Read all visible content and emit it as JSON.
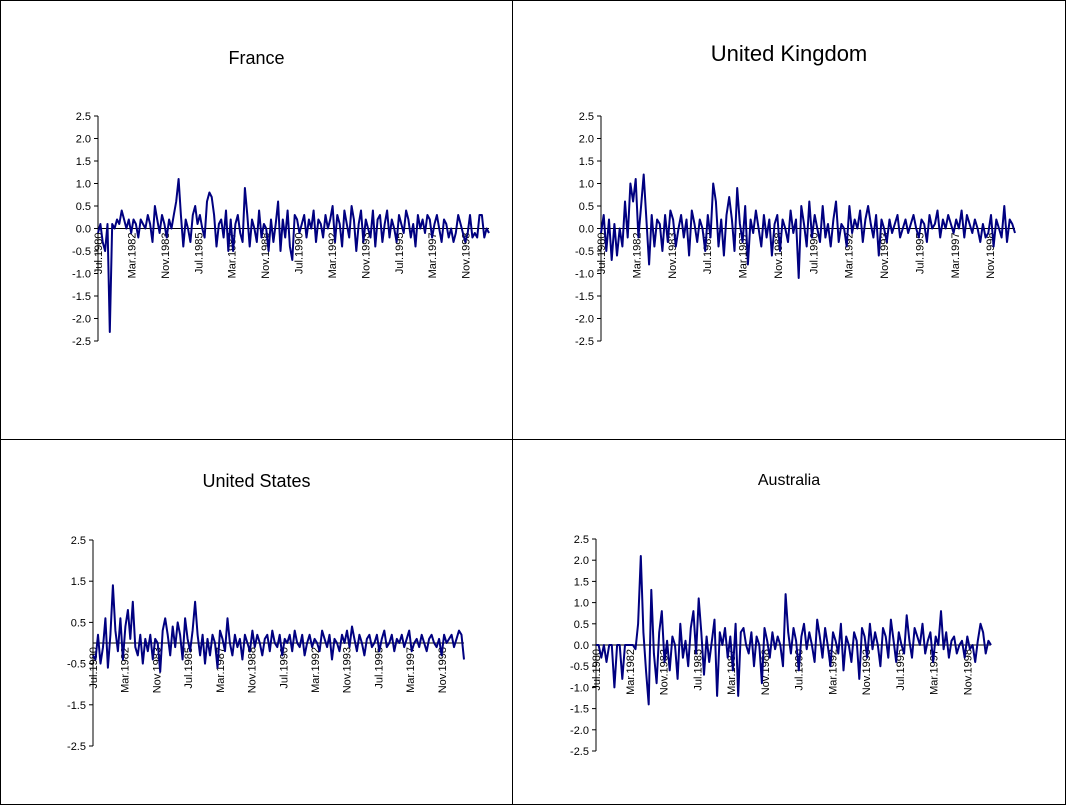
{
  "chart_data": [
    {
      "type": "line",
      "title": "France",
      "xlabel": "",
      "ylabel": "",
      "ylim": [
        -2.5,
        2.5
      ],
      "y_ticks": [
        "2.5",
        "2.0",
        "1.5",
        "1.0",
        "0.5",
        "0.0",
        "-0.5",
        "-1.0",
        "-1.5",
        "-2.0",
        "-2.5"
      ],
      "x_tick_labels": [
        "Jul.1980",
        "Mar.1982",
        "Nov.1983",
        "Jul.1985",
        "Mar.1987",
        "Nov.1988",
        "Jul.1990",
        "Mar.1992",
        "Nov.1993",
        "Jul.1995",
        "Mar.1997",
        "Nov.1998"
      ],
      "series": [
        {
          "color": "#000080",
          "values": [
            -0.1,
            0.1,
            -0.3,
            -0.5,
            0.1,
            -2.3,
            0.1,
            0.0,
            0.2,
            0.1,
            0.4,
            0.2,
            0.0,
            0.2,
            -0.1,
            0.2,
            0.1,
            -0.2,
            0.2,
            0.1,
            0.0,
            0.3,
            0.1,
            -0.3,
            0.5,
            0.2,
            -0.1,
            0.3,
            0.1,
            -0.2,
            0.2,
            0.0,
            0.3,
            0.6,
            1.1,
            0.3,
            -0.4,
            0.2,
            0.0,
            -0.3,
            0.3,
            0.5,
            0.1,
            0.3,
            0.0,
            -0.2,
            0.6,
            0.8,
            0.7,
            0.3,
            -0.4,
            0.1,
            0.2,
            -0.2,
            0.4,
            -0.5,
            0.2,
            -0.5,
            0.1,
            0.3,
            -0.1,
            -0.3,
            0.9,
            0.3,
            -0.4,
            0.2,
            0.0,
            -0.3,
            0.4,
            -0.2,
            0.1,
            0.0,
            -0.5,
            0.2,
            -0.3,
            0.1,
            0.6,
            -0.5,
            0.2,
            -0.2,
            0.4,
            -0.4,
            -0.7,
            0.3,
            0.2,
            -0.1,
            0.1,
            0.3,
            -0.2,
            0.2,
            0.0,
            0.4,
            -0.3,
            0.2,
            0.1,
            -0.2,
            0.3,
            0.0,
            0.2,
            0.5,
            -0.3,
            0.3,
            0.1,
            -0.4,
            0.4,
            0.1,
            -0.2,
            0.5,
            0.2,
            -0.5,
            0.1,
            0.4,
            -0.3,
            0.2,
            0.0,
            -0.2,
            0.4,
            -0.4,
            0.2,
            0.3,
            -0.3,
            0.1,
            0.4,
            -0.2,
            0.2,
            0.0,
            -0.3,
            0.3,
            0.1,
            -0.1,
            0.4,
            0.2,
            -0.2,
            0.1,
            -0.4,
            0.3,
            0.0,
            0.2,
            -0.1,
            0.3,
            0.2,
            -0.2,
            0.1,
            0.3,
            0.0,
            -0.3,
            0.2,
            0.1,
            -0.2,
            0.0,
            -0.3,
            -0.1,
            0.3,
            0.1,
            -0.1,
            -0.3,
            -0.1,
            0.3,
            -0.2,
            -0.1,
            -0.2,
            0.3,
            0.3,
            -0.2,
            0.0,
            -0.1
          ]
        }
      ]
    },
    {
      "type": "line",
      "title": "United Kingdom",
      "xlabel": "",
      "ylabel": "",
      "ylim": [
        -2.5,
        2.5
      ],
      "y_ticks": [
        "2.5",
        "2.0",
        "1.5",
        "1.0",
        "0.5",
        "0.0",
        "-0.5",
        "-1.0",
        "-1.5",
        "-2.0",
        "-2.5"
      ],
      "x_tick_labels": [
        "Jul.1980",
        "Mar.1982",
        "Nov.1983",
        "Jul.1985",
        "Mar.1987",
        "Nov.1988",
        "Jul.1990",
        "Mar.1992",
        "Nov.1993",
        "Jul.1995",
        "Mar.1997",
        "Nov.1998"
      ],
      "series": [
        {
          "color": "#000080",
          "values": [
            -0.1,
            0.3,
            -0.5,
            0.2,
            -0.7,
            0.1,
            -0.6,
            0.0,
            -0.4,
            0.6,
            -0.2,
            1.0,
            0.6,
            1.1,
            -0.2,
            0.5,
            1.2,
            0.2,
            -0.8,
            0.3,
            -0.4,
            0.2,
            0.1,
            -0.5,
            0.3,
            -0.3,
            0.4,
            0.2,
            -0.4,
            0.0,
            0.3,
            -0.2,
            0.2,
            -0.6,
            0.4,
            0.1,
            -0.3,
            0.2,
            0.0,
            -0.5,
            0.3,
            -0.2,
            1.0,
            0.6,
            -0.4,
            0.2,
            -0.6,
            0.3,
            0.7,
            0.2,
            -0.5,
            0.9,
            0.1,
            -0.3,
            0.5,
            -0.8,
            0.2,
            -0.1,
            0.4,
            0.0,
            -0.4,
            0.3,
            -0.2,
            0.2,
            -0.6,
            0.1,
            0.3,
            -0.5,
            0.2,
            0.0,
            -0.3,
            0.4,
            -0.1,
            0.2,
            -1.1,
            0.5,
            0.1,
            -0.4,
            0.6,
            -0.2,
            0.3,
            0.0,
            -0.3,
            0.5,
            -0.2,
            0.1,
            -0.4,
            0.2,
            0.6,
            -0.3,
            0.1,
            0.0,
            -0.4,
            0.5,
            -0.1,
            0.2,
            0.0,
            0.4,
            -0.3,
            0.2,
            0.5,
            0.1,
            -0.2,
            0.3,
            -0.6,
            0.2,
            0.0,
            -0.3,
            0.2,
            -0.1,
            0.1,
            0.3,
            -0.2,
            0.0,
            0.2,
            -0.1,
            0.1,
            0.3,
            0.0,
            -0.2,
            0.2,
            0.1,
            -0.3,
            0.3,
            0.0,
            0.1,
            0.4,
            -0.2,
            0.2,
            0.0,
            0.3,
            0.1,
            -0.1,
            0.2,
            0.0,
            0.4,
            -0.2,
            0.3,
            0.1,
            -0.1,
            0.2,
            0.0,
            -0.3,
            0.1,
            -0.2,
            -0.1,
            0.3,
            -0.4,
            0.2,
            0.0,
            -0.2,
            0.5,
            -0.3,
            0.2,
            0.1,
            -0.1
          ]
        }
      ]
    },
    {
      "type": "line",
      "title": "United States",
      "xlabel": "",
      "ylabel": "",
      "ylim": [
        -2.5,
        2.5
      ],
      "y_ticks": [
        "2.5",
        "1.5",
        "0.5",
        "-0.5",
        "-1.5",
        "-2.5"
      ],
      "x_tick_labels": [
        "Jul.1980",
        "Mar.1982",
        "Nov.1983",
        "Jul.1985",
        "Mar.1987",
        "Nov.1988",
        "Jul.1990",
        "Mar.1992",
        "Nov.1993",
        "Jul.1995",
        "Mar.1997",
        "Nov.1998"
      ],
      "series": [
        {
          "color": "#000080",
          "values": [
            -0.3,
            -0.4,
            0.2,
            -0.5,
            -0.1,
            0.6,
            -0.6,
            0.2,
            1.4,
            0.3,
            -0.2,
            0.6,
            -0.4,
            0.4,
            0.8,
            0.1,
            1.0,
            -0.1,
            -0.3,
            0.2,
            -0.5,
            0.1,
            -0.2,
            0.2,
            -0.4,
            0.1,
            0.0,
            -0.7,
            0.3,
            0.6,
            0.2,
            -0.3,
            0.4,
            -0.1,
            0.5,
            0.2,
            -0.4,
            0.6,
            0.1,
            -0.2,
            0.3,
            1.0,
            0.2,
            -0.3,
            0.2,
            -0.5,
            0.1,
            -0.3,
            0.2,
            0.0,
            -0.6,
            0.3,
            0.1,
            -0.2,
            0.6,
            0.0,
            -0.3,
            0.2,
            -0.1,
            0.1,
            -0.4,
            0.2,
            0.0,
            -0.2,
            0.3,
            -0.1,
            0.2,
            0.0,
            -0.3,
            0.1,
            0.2,
            -0.2,
            0.3,
            0.0,
            -0.1,
            0.2,
            -0.3,
            0.1,
            0.0,
            0.2,
            -0.2,
            0.3,
            0.0,
            -0.1,
            0.2,
            -0.3,
            0.0,
            0.2,
            -0.1,
            0.1,
            0.0,
            -0.2,
            0.3,
            0.1,
            -0.1,
            0.2,
            -0.4,
            0.1,
            0.0,
            -0.2,
            0.2,
            0.0,
            0.3,
            -0.1,
            0.4,
            0.1,
            -0.2,
            0.2,
            0.0,
            -0.3,
            0.1,
            0.2,
            -0.1,
            0.0,
            0.2,
            -0.2,
            0.1,
            0.3,
            -0.1,
            0.0,
            0.2,
            -0.2,
            0.1,
            0.0,
            0.2,
            -0.1,
            0.1,
            0.3,
            -0.2,
            0.0,
            0.1,
            -0.1,
            0.2,
            0.0,
            -0.2,
            0.1,
            0.2,
            0.0,
            -0.1,
            0.1,
            -0.3,
            0.2,
            0.0,
            0.1,
            0.2,
            -0.1,
            0.1,
            0.3,
            0.2,
            -0.4
          ]
        }
      ]
    },
    {
      "type": "line",
      "title": "Australia",
      "xlabel": "",
      "ylabel": "",
      "ylim": [
        -2.5,
        2.5
      ],
      "y_ticks": [
        "2.5",
        "2.0",
        "1.5",
        "1.0",
        "0.5",
        "0.0",
        "-0.5",
        "-1.0",
        "-1.5",
        "-2.0",
        "-2.5"
      ],
      "x_tick_labels": [
        "Jul.1980",
        "Mar.1982",
        "Nov.1983",
        "Jul.1985",
        "Mar.1987",
        "Nov.1988",
        "Jul.1990",
        "Mar.1992",
        "Nov.1993",
        "Jul.1995",
        "Mar.1997",
        "Nov.1998"
      ],
      "series": [
        {
          "color": "#000080",
          "values": [
            0.0,
            0.0,
            -0.3,
            0.0,
            -0.4,
            0.0,
            0.0,
            -1.0,
            0.0,
            0.0,
            -0.8,
            0.0,
            0.0,
            0.0,
            0.0,
            -0.1,
            0.5,
            2.1,
            0.3,
            -0.6,
            -1.4,
            1.3,
            -0.2,
            -0.9,
            0.3,
            0.8,
            -0.4,
            0.1,
            -0.6,
            0.2,
            0.0,
            -0.8,
            0.5,
            -0.3,
            0.1,
            -0.5,
            0.4,
            0.8,
            -0.2,
            1.1,
            0.3,
            -0.7,
            0.2,
            -0.4,
            0.1,
            0.6,
            -1.2,
            0.3,
            0.0,
            0.4,
            -0.3,
            0.2,
            -0.6,
            0.5,
            -1.2,
            0.3,
            0.4,
            0.0,
            -0.2,
            0.3,
            -0.5,
            0.2,
            0.0,
            -0.9,
            0.4,
            0.1,
            -0.3,
            0.3,
            -0.1,
            0.2,
            0.0,
            -0.5,
            1.2,
            0.3,
            -0.2,
            0.4,
            0.1,
            -0.6,
            0.2,
            0.5,
            -0.1,
            0.3,
            0.0,
            -0.4,
            0.6,
            0.2,
            -0.3,
            0.4,
            0.0,
            -0.5,
            0.3,
            0.1,
            -0.2,
            0.5,
            -0.6,
            0.2,
            0.0,
            -0.4,
            0.3,
            0.1,
            -0.8,
            0.4,
            0.2,
            -0.3,
            0.5,
            -0.1,
            0.3,
            0.0,
            -0.5,
            0.4,
            0.2,
            -0.3,
            0.6,
            0.1,
            -0.4,
            0.3,
            0.0,
            -0.2,
            0.7,
            0.1,
            -0.3,
            0.4,
            0.2,
            0.0,
            0.5,
            -0.2,
            0.1,
            0.3,
            -0.4,
            0.2,
            0.0,
            0.8,
            -0.1,
            0.3,
            -0.3,
            0.1,
            0.2,
            -0.2,
            0.0,
            0.1,
            -0.3,
            0.2,
            -0.1,
            0.0,
            -0.4,
            0.1,
            0.5,
            0.3,
            -0.2,
            0.1,
            0.0
          ]
        }
      ]
    }
  ]
}
